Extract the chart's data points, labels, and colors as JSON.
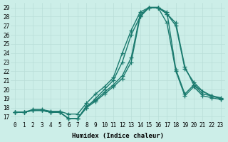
{
  "xlabel": "Humidex (Indice chaleur)",
  "bg_color": "#cceee8",
  "line_color": "#1a7a6e",
  "grid_color": "#b8ddd8",
  "xlim": [
    -0.5,
    23.5
  ],
  "ylim": [
    16.5,
    29.5
  ],
  "yticks": [
    17,
    18,
    19,
    20,
    21,
    22,
    23,
    24,
    25,
    26,
    27,
    28,
    29
  ],
  "xticks": [
    0,
    1,
    2,
    3,
    4,
    5,
    6,
    7,
    8,
    9,
    10,
    11,
    12,
    13,
    14,
    15,
    16,
    17,
    18,
    19,
    20,
    21,
    22,
    23
  ],
  "series": [
    [
      17.5,
      17.5,
      17.7,
      17.7,
      17.5,
      17.5,
      16.8,
      16.8,
      18.0,
      18.7,
      19.5,
      20.3,
      21.2,
      23.0,
      28.0,
      29.0,
      29.0,
      28.5,
      22.2,
      19.5,
      20.5,
      19.5,
      19.3,
      19.0
    ],
    [
      17.5,
      17.5,
      17.7,
      17.7,
      17.5,
      17.5,
      16.8,
      16.8,
      18.2,
      18.8,
      19.7,
      20.5,
      21.5,
      23.5,
      28.2,
      29.0,
      29.0,
      27.3,
      22.0,
      19.3,
      20.3,
      19.3,
      19.1,
      18.9
    ],
    [
      17.5,
      17.5,
      17.8,
      17.8,
      17.6,
      17.6,
      17.3,
      17.3,
      18.5,
      19.5,
      20.3,
      21.3,
      24.0,
      26.5,
      28.5,
      29.0,
      29.0,
      28.3,
      27.0,
      22.3,
      20.8,
      19.8,
      19.3,
      19.1
    ],
    [
      17.5,
      17.5,
      17.7,
      17.7,
      17.5,
      17.5,
      16.8,
      16.8,
      18.0,
      19.0,
      20.0,
      21.0,
      23.0,
      26.0,
      28.0,
      29.0,
      29.0,
      28.3,
      27.3,
      22.5,
      20.5,
      19.8,
      19.3,
      19.0
    ]
  ],
  "figsize": [
    3.2,
    2.0
  ],
  "dpi": 100
}
